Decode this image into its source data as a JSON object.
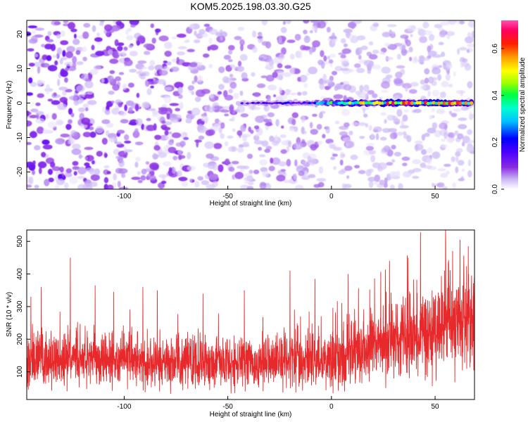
{
  "title": "KOM5.2025.198.03.30.G25",
  "colors": {
    "snr_line": "#e8292b",
    "noise": "#8a2be2",
    "colormap": [
      "#ffffff",
      "#c8b4f5",
      "#8a2be2",
      "#4b00ff",
      "#0000ff",
      "#00bfff",
      "#00ffd0",
      "#00ff40",
      "#a0ff00",
      "#ffff00",
      "#ffa000",
      "#ff2000",
      "#ff0060",
      "#ff50b0"
    ]
  },
  "chart_data": [
    {
      "type": "heatmap",
      "xlabel": "Height of straight line (km)",
      "ylabel": "Frequency (Hz)",
      "xlim": [
        -147,
        69
      ],
      "ylim": [
        -25,
        24
      ],
      "x_ticks": [
        -100,
        -50,
        0,
        50
      ],
      "x_tick_labels": [
        "-100",
        "-50",
        "0",
        "50"
      ],
      "y_ticks": [
        20,
        10,
        0,
        -10,
        -20
      ],
      "y_tick_labels": [
        "20",
        "10",
        "0",
        "-10",
        "-20"
      ],
      "colorbar": {
        "label": "Normalized spectral amplitude",
        "range": [
          0,
          0.72
        ],
        "ticks": [
          0.0,
          0.2,
          0.4,
          0.6
        ],
        "tick_labels": [
          "0.0",
          "0.2",
          "0.4",
          "0.6"
        ]
      },
      "signal_track": {
        "frequency": 0,
        "x_start": -45,
        "x_end": 68,
        "amplitude_points": [
          {
            "x": -45,
            "value": 0.12
          },
          {
            "x": -30,
            "value": 0.18
          },
          {
            "x": -10,
            "value": 0.2
          },
          {
            "x": 5,
            "value": 0.45
          },
          {
            "x": 15,
            "value": 0.5
          },
          {
            "x": 25,
            "value": 0.5
          },
          {
            "x": 31,
            "value": 0.66
          },
          {
            "x": 45,
            "value": 0.55
          },
          {
            "x": 55,
            "value": 0.66
          },
          {
            "x": 62,
            "value": 0.5
          }
        ]
      }
    },
    {
      "type": "line",
      "xlabel": "Height of straight line (km)",
      "ylabel": "SNR (10 * v/v)",
      "xlim": [
        -147,
        69
      ],
      "ylim": [
        15,
        535
      ],
      "x_ticks": [
        -100,
        -50,
        0,
        50
      ],
      "x_tick_labels": [
        "-100",
        "-50",
        "0",
        "50"
      ],
      "y_ticks": [
        100,
        200,
        300,
        400,
        500
      ],
      "y_tick_labels": [
        "100",
        "200",
        "300",
        "400",
        "500"
      ],
      "series": [
        {
          "style": "noisy",
          "x": [
            -147,
            -120,
            -100,
            -80,
            -60,
            -40,
            -20,
            0,
            20,
            40,
            60,
            69
          ],
          "mean": [
            140,
            140,
            135,
            130,
            125,
            130,
            135,
            145,
            175,
            225,
            245,
            250
          ],
          "spread": [
            90,
            90,
            90,
            85,
            85,
            85,
            90,
            100,
            120,
            140,
            150,
            150
          ],
          "peaks": [
            {
              "x": -145,
              "y": 330
            },
            {
              "x": -140,
              "y": 360
            },
            {
              "x": -126,
              "y": 450
            },
            {
              "x": -114,
              "y": 365
            },
            {
              "x": -105,
              "y": 345
            },
            {
              "x": -91,
              "y": 360
            },
            {
              "x": -84,
              "y": 350
            },
            {
              "x": -62,
              "y": 340
            },
            {
              "x": -42,
              "y": 350
            },
            {
              "x": -20,
              "y": 410
            },
            {
              "x": -8,
              "y": 385
            },
            {
              "x": 8,
              "y": 400
            },
            {
              "x": 28,
              "y": 440
            },
            {
              "x": 37,
              "y": 450
            },
            {
              "x": 43,
              "y": 528
            },
            {
              "x": 55,
              "y": 535
            },
            {
              "x": 62,
              "y": 505
            },
            {
              "x": 66,
              "y": 485
            }
          ]
        }
      ]
    }
  ]
}
